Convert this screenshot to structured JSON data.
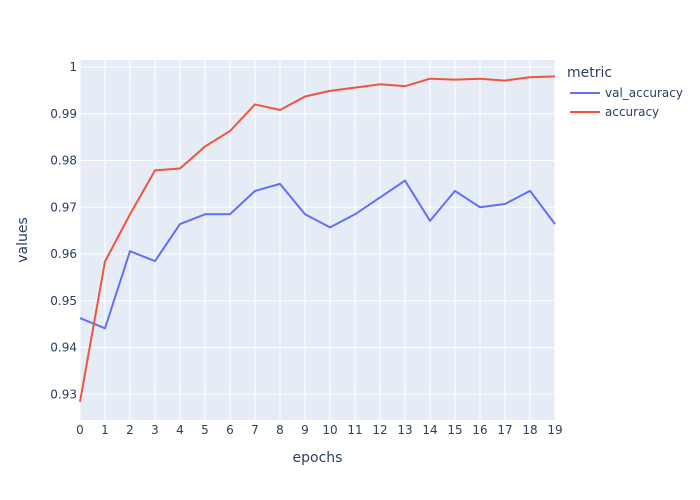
{
  "chart_data": {
    "type": "line",
    "title": "",
    "xlabel": "epochs",
    "ylabel": "values",
    "xlim": [
      0,
      19
    ],
    "ylim": [
      0.9245,
      1.0015
    ],
    "x": [
      0,
      1,
      2,
      3,
      4,
      5,
      6,
      7,
      8,
      9,
      10,
      11,
      12,
      13,
      14,
      15,
      16,
      17,
      18,
      19
    ],
    "x_ticks": [
      "0",
      "1",
      "2",
      "3",
      "4",
      "5",
      "6",
      "7",
      "8",
      "9",
      "10",
      "11",
      "12",
      "13",
      "14",
      "15",
      "16",
      "17",
      "18",
      "19"
    ],
    "y_ticks": [
      {
        "value": 0.93,
        "label": "0.93"
      },
      {
        "value": 0.94,
        "label": "0.94"
      },
      {
        "value": 0.95,
        "label": "0.95"
      },
      {
        "value": 0.96,
        "label": "0.96"
      },
      {
        "value": 0.97,
        "label": "0.97"
      },
      {
        "value": 0.98,
        "label": "0.98"
      },
      {
        "value": 0.99,
        "label": "0.99"
      },
      {
        "value": 1.0,
        "label": "1"
      }
    ],
    "legend": {
      "title": "metric",
      "position": "right"
    },
    "grid": true,
    "series": [
      {
        "name": "val_accuracy",
        "color": "#636efa",
        "values": [
          0.9463,
          0.9441,
          0.9606,
          0.9585,
          0.9664,
          0.9685,
          0.9685,
          0.9735,
          0.975,
          0.9685,
          0.9657,
          0.9685,
          0.9721,
          0.9757,
          0.9671,
          0.9735,
          0.97,
          0.9707,
          0.9735,
          0.9664
        ]
      },
      {
        "name": "accuracy",
        "color": "#ef553b",
        "values": [
          0.9284,
          0.9584,
          0.9685,
          0.9779,
          0.9783,
          0.983,
          0.9863,
          0.992,
          0.9908,
          0.9937,
          0.9949,
          0.9956,
          0.9963,
          0.9959,
          0.9975,
          0.9973,
          0.9975,
          0.9971,
          0.9978,
          0.998
        ]
      }
    ]
  },
  "style": {
    "plot_bg": "#e5ecf6",
    "grid_color": "#ffffff",
    "text_color": "#2a3f5f"
  }
}
